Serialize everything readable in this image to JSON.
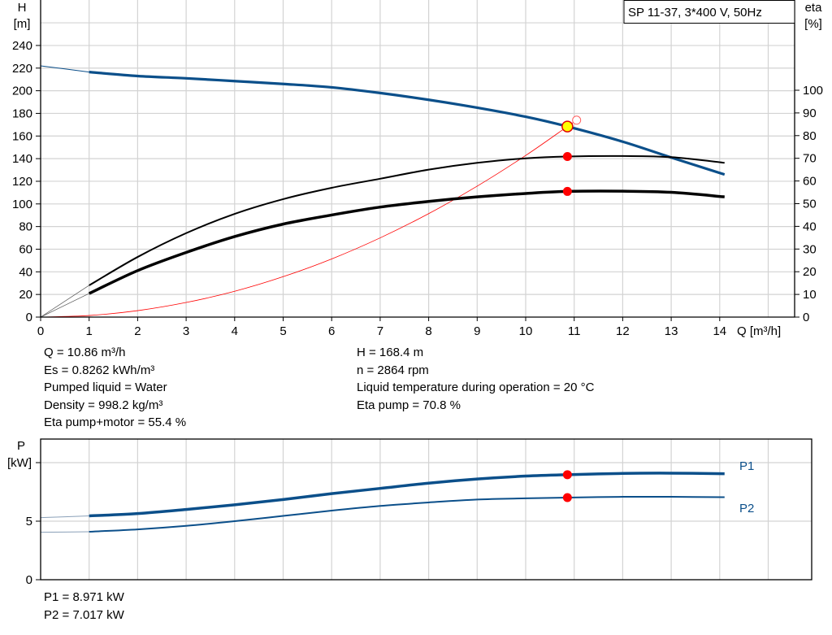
{
  "chart_data": [
    {
      "type": "line",
      "title": "SP 11-37, 3*400 V, 50Hz",
      "xlabel": "Q [m³/h]",
      "ylabel": "H\n[m]",
      "ylabel_left_lines": [
        "H",
        "[m]"
      ],
      "ylabel_right_lines": [
        "eta",
        "[%]"
      ],
      "xlim": [
        0,
        15.5
      ],
      "ylim": [
        0,
        260
      ],
      "ylim_right": [
        0,
        100
      ],
      "x_ticks": [
        0,
        1,
        2,
        3,
        4,
        5,
        6,
        7,
        8,
        9,
        10,
        11,
        12,
        13,
        14
      ],
      "y_ticks": [
        0,
        20,
        40,
        60,
        80,
        100,
        120,
        140,
        160,
        180,
        200,
        220,
        240
      ],
      "y_ticks_right": [
        0,
        10,
        20,
        30,
        40,
        50,
        60,
        70,
        80,
        90,
        100
      ],
      "grid": true,
      "series": [
        {
          "key": "head",
          "axis": "left",
          "color": "#0b4f8a",
          "x": [
            0,
            1,
            2,
            3,
            4,
            5,
            6,
            7,
            8,
            9,
            10,
            10.86,
            12,
            13,
            14.1
          ],
          "y": [
            222,
            216.5,
            213,
            211,
            208.5,
            206,
            203,
            198,
            192,
            185,
            177,
            168.4,
            155,
            141,
            126
          ]
        },
        {
          "key": "eta_pump",
          "axis": "right",
          "color": "#000000",
          "x": [
            1,
            2,
            3,
            4,
            5,
            6,
            7,
            8,
            9,
            10,
            10.86,
            12,
            13,
            14.1
          ],
          "y": [
            14,
            26.5,
            37,
            45.5,
            52,
            57,
            61,
            65,
            68,
            70,
            70.8,
            71,
            70.5,
            68
          ]
        },
        {
          "key": "eta_pump_motor",
          "axis": "right",
          "color": "#000000",
          "x": [
            1,
            2,
            3,
            4,
            5,
            6,
            7,
            8,
            9,
            10,
            10.86,
            12,
            13,
            14.1
          ],
          "y": [
            10.4,
            20.5,
            28.5,
            35.5,
            41,
            45,
            48.5,
            51,
            53,
            54.5,
            55.4,
            55.5,
            55,
            53
          ]
        },
        {
          "key": "system_curve",
          "axis": "left",
          "color": "#ff0000",
          "x": [
            0,
            1,
            2,
            3,
            4,
            5,
            6,
            7,
            8,
            9,
            10,
            10.86,
            11.05
          ],
          "y": [
            0,
            1.4,
            5.7,
            12.9,
            22.8,
            35.7,
            51.4,
            70,
            91.4,
            115.7,
            142.8,
            168.4,
            174
          ]
        }
      ],
      "duty_point": {
        "q": 10.86,
        "h": 168.4,
        "eta_pump": 70.8,
        "eta_pump_motor": 55.4
      }
    },
    {
      "type": "line",
      "ylabel_lines": [
        "P",
        "[kW]"
      ],
      "xlim": [
        0,
        15.85
      ],
      "ylim": [
        0,
        12
      ],
      "y_ticks": [
        0,
        5,
        10
      ],
      "y_tick_labels": [
        "0",
        "5",
        ""
      ],
      "grid": true,
      "series": [
        {
          "name": "P1",
          "color": "#0b4f8a",
          "x": [
            0,
            1,
            2,
            3,
            4,
            5,
            6,
            7,
            8,
            9,
            10,
            10.86,
            12,
            13,
            14.1
          ],
          "y": [
            5.3,
            5.45,
            5.65,
            6.0,
            6.4,
            6.85,
            7.35,
            7.8,
            8.25,
            8.6,
            8.85,
            8.971,
            9.08,
            9.1,
            9.05
          ]
        },
        {
          "name": "P2",
          "color": "#0b4f8a",
          "x": [
            0,
            1,
            2,
            3,
            4,
            5,
            6,
            7,
            8,
            9,
            10,
            10.86,
            12,
            13,
            14.1
          ],
          "y": [
            4.05,
            4.1,
            4.3,
            4.6,
            5.0,
            5.45,
            5.9,
            6.3,
            6.6,
            6.85,
            6.95,
            7.017,
            7.08,
            7.08,
            7.05
          ]
        }
      ]
    }
  ],
  "info": {
    "left": [
      "Q = 10.86 m³/h",
      "Es = 0.8262 kWh/m³",
      "Pumped liquid = Water",
      "Density = 998.2 kg/m³",
      "Eta pump+motor = 55.4 %"
    ],
    "right": [
      "H = 168.4 m",
      "n = 2864 rpm",
      "Liquid temperature during operation = 20 °C",
      "Eta pump = 70.8 %"
    ],
    "power": [
      "P1 = 8.971 kW",
      "P2 = 7.017 kW"
    ]
  }
}
